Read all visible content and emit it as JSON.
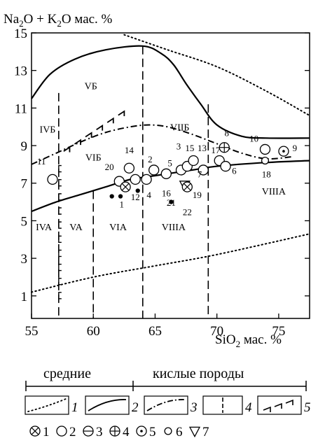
{
  "chart_data": {
    "type": "scatter",
    "title": "",
    "ylabel_parts": [
      "Na",
      "2",
      "O + K",
      "2",
      "O мас. %"
    ],
    "xlabel_parts": [
      "SiO",
      "2",
      " мас. %"
    ],
    "xlim": [
      55,
      77.5
    ],
    "ylim": [
      -0.2,
      15
    ],
    "x_ticks": [
      55,
      60,
      65,
      70,
      75
    ],
    "y_ticks": [
      1,
      3,
      5,
      7,
      9,
      11,
      13,
      15
    ],
    "grid": false,
    "zones": [
      {
        "label": "IVБ",
        "x": 56.3,
        "y": 9.7
      },
      {
        "label": "VБ",
        "x": 59.8,
        "y": 12.0
      },
      {
        "label": "VIБ",
        "x": 60.0,
        "y": 8.2
      },
      {
        "label": "VIIБ",
        "x": 67.0,
        "y": 9.8
      },
      {
        "label": "IVA",
        "x": 56.0,
        "y": 4.5
      },
      {
        "label": "VA",
        "x": 58.6,
        "y": 4.5
      },
      {
        "label": "VIA",
        "x": 62.0,
        "y": 4.5
      },
      {
        "label": "VIIIA",
        "x": 66.5,
        "y": 4.5
      },
      {
        "label": "VIIIA",
        "x": 74.6,
        "y": 6.4
      }
    ],
    "curves": [
      {
        "legend": 1,
        "style": "dotted",
        "points": [
          [
            62.5,
            14.9
          ],
          [
            66,
            14.1
          ],
          [
            70,
            13.2
          ],
          [
            74,
            11.9
          ],
          [
            77.5,
            10.6
          ]
        ]
      },
      {
        "legend": 1,
        "style": "dotted",
        "points": [
          [
            55,
            1.2
          ],
          [
            60,
            2.0
          ],
          [
            65,
            2.6
          ],
          [
            70,
            3.2
          ],
          [
            77.5,
            4.3
          ]
        ]
      },
      {
        "legend": 2,
        "style": "solid",
        "points": [
          [
            55,
            11.5
          ],
          [
            56.5,
            12.8
          ],
          [
            58.5,
            13.6
          ],
          [
            61,
            14.1
          ],
          [
            64,
            14.3
          ],
          [
            65.5,
            13.9
          ],
          [
            66.5,
            13.3
          ],
          [
            67.5,
            12.3
          ],
          [
            68.7,
            11.2
          ],
          [
            70,
            10.1
          ],
          [
            72,
            9.5
          ],
          [
            74,
            9.4
          ],
          [
            77.5,
            9.4
          ]
        ]
      },
      {
        "legend": 2,
        "style": "solid",
        "points": [
          [
            55,
            5.5
          ],
          [
            57,
            6.0
          ],
          [
            59,
            6.4
          ],
          [
            61,
            6.8
          ],
          [
            63,
            7.2
          ],
          [
            65,
            7.4
          ],
          [
            68,
            7.7
          ],
          [
            70,
            7.9
          ],
          [
            74,
            8.1
          ],
          [
            77.5,
            8.2
          ]
        ]
      },
      {
        "legend": 3,
        "style": "dashdot",
        "points": [
          [
            55,
            8.0
          ],
          [
            57,
            8.6
          ],
          [
            59,
            9.2
          ],
          [
            61,
            9.7
          ],
          [
            63,
            10.0
          ],
          [
            64.5,
            10.1
          ],
          [
            66,
            10.0
          ],
          [
            68,
            9.6
          ],
          [
            70,
            9.1
          ],
          [
            72,
            8.6
          ],
          [
            74,
            8.3
          ],
          [
            76,
            8.4
          ]
        ]
      }
    ],
    "boundaries_x": [
      57.2,
      64.0,
      69.3
    ],
    "boundary_short_x": 60.0,
    "point_labels": [
      {
        "n": "1",
        "x": 62.3,
        "y": 5.7
      },
      {
        "n": "2",
        "x": 64.6,
        "y": 8.1
      },
      {
        "n": "3",
        "x": 66.9,
        "y": 8.8
      },
      {
        "n": "4",
        "x": 64.5,
        "y": 6.2
      },
      {
        "n": "5",
        "x": 66.2,
        "y": 7.9
      },
      {
        "n": "6",
        "x": 71.4,
        "y": 7.5
      },
      {
        "n": "7",
        "x": 68.6,
        "y": 7.3
      },
      {
        "n": "8",
        "x": 70.8,
        "y": 9.5
      },
      {
        "n": "9",
        "x": 76.3,
        "y": 8.7
      },
      {
        "n": "10",
        "x": 73.0,
        "y": 9.2
      },
      {
        "n": "11",
        "x": 55.8,
        "y": 8.0
      },
      {
        "n": "12",
        "x": 63.4,
        "y": 6.1
      },
      {
        "n": "13",
        "x": 68.8,
        "y": 8.7
      },
      {
        "n": "14",
        "x": 62.9,
        "y": 8.6
      },
      {
        "n": "15",
        "x": 67.8,
        "y": 8.7
      },
      {
        "n": "16",
        "x": 65.9,
        "y": 6.3
      },
      {
        "n": "17",
        "x": 69.9,
        "y": 8.6
      },
      {
        "n": "18",
        "x": 74.0,
        "y": 7.3
      },
      {
        "n": "19",
        "x": 68.4,
        "y": 6.2
      },
      {
        "n": "20",
        "x": 61.3,
        "y": 7.7
      },
      {
        "n": "21",
        "x": 66.3,
        "y": 5.8
      },
      {
        "n": "22",
        "x": 67.6,
        "y": 5.3
      }
    ],
    "points": [
      {
        "symbol": "crossed-circle",
        "x": 62.6,
        "y": 6.8
      },
      {
        "symbol": "crossed-circle",
        "x": 67.6,
        "y": 6.8
      },
      {
        "symbol": "open-circle",
        "x": 56.7,
        "y": 7.2
      },
      {
        "symbol": "open-circle",
        "x": 62.1,
        "y": 7.1
      },
      {
        "symbol": "open-circle",
        "x": 62.9,
        "y": 7.8
      },
      {
        "symbol": "open-circle",
        "x": 63.4,
        "y": 7.2
      },
      {
        "symbol": "open-circle",
        "x": 64.3,
        "y": 7.2
      },
      {
        "symbol": "open-circle",
        "x": 64.9,
        "y": 7.7
      },
      {
        "symbol": "open-circle",
        "x": 65.9,
        "y": 7.5
      },
      {
        "symbol": "open-circle",
        "x": 67.1,
        "y": 7.7
      },
      {
        "symbol": "open-circle",
        "x": 67.6,
        "y": 7.9
      },
      {
        "symbol": "open-circle",
        "x": 68.1,
        "y": 8.2
      },
      {
        "symbol": "open-circle",
        "x": 68.9,
        "y": 7.7
      },
      {
        "symbol": "open-circle",
        "x": 70.2,
        "y": 8.2
      },
      {
        "symbol": "open-circle",
        "x": 70.7,
        "y": 7.9
      },
      {
        "symbol": "open-circle",
        "x": 73.9,
        "y": 8.8
      },
      {
        "symbol": "crossed-plus",
        "x": 70.6,
        "y": 8.9
      },
      {
        "symbol": "dotted-circle",
        "x": 75.4,
        "y": 8.7
      },
      {
        "symbol": "small-circle",
        "x": 73.9,
        "y": 8.2
      },
      {
        "symbol": "triangle-down",
        "x": 67.4,
        "y": 6.9
      },
      {
        "symbol": "filled-dot",
        "x": 61.5,
        "y": 6.3
      },
      {
        "symbol": "filled-dot",
        "x": 62.2,
        "y": 6.3
      },
      {
        "symbol": "filled-dot",
        "x": 63.6,
        "y": 6.6
      },
      {
        "symbol": "filled-dot",
        "x": 66.3,
        "y": 6.0
      }
    ]
  },
  "caption": {
    "left": "средние",
    "right": "кислые породы"
  },
  "legend_lines": [
    "1",
    "2",
    "3",
    "4",
    "5"
  ],
  "legend_symbols": [
    {
      "symbol": "crossed-circle",
      "n": "1"
    },
    {
      "symbol": "open-circle",
      "n": "2"
    },
    {
      "symbol": "minus-circle",
      "n": "3"
    },
    {
      "symbol": "crossed-plus",
      "n": "4"
    },
    {
      "symbol": "dotted-circle",
      "n": "5"
    },
    {
      "symbol": "small-circle",
      "n": "6"
    },
    {
      "symbol": "triangle-down",
      "n": "7"
    }
  ]
}
